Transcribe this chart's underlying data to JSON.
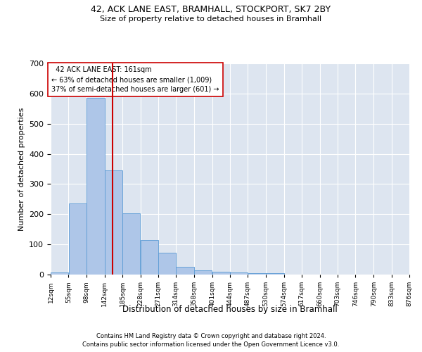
{
  "title1": "42, ACK LANE EAST, BRAMHALL, STOCKPORT, SK7 2BY",
  "title2": "Size of property relative to detached houses in Bramhall",
  "xlabel": "Distribution of detached houses by size in Bramhall",
  "ylabel": "Number of detached properties",
  "footnote1": "Contains HM Land Registry data © Crown copyright and database right 2024.",
  "footnote2": "Contains public sector information licensed under the Open Government Licence v3.0.",
  "annotation_line1": "  42 ACK LANE EAST: 161sqm  ",
  "annotation_line2": "← 63% of detached houses are smaller (1,009)",
  "annotation_line3": "37% of semi-detached houses are larger (601) →",
  "bar_color": "#aec6e8",
  "bar_edge_color": "#5b9bd5",
  "vline_color": "#cc0000",
  "vline_x": 161,
  "background_color": "#dde5f0",
  "ylim": [
    0,
    700
  ],
  "yticks": [
    0,
    100,
    200,
    300,
    400,
    500,
    600,
    700
  ],
  "bin_edges": [
    12,
    55,
    98,
    142,
    185,
    228,
    271,
    314,
    358,
    401,
    444,
    487,
    530,
    574,
    617,
    660,
    703,
    746,
    790,
    833,
    876
  ],
  "bar_heights": [
    7,
    235,
    585,
    345,
    202,
    115,
    72,
    25,
    13,
    9,
    8,
    5,
    4,
    0,
    0,
    0,
    0,
    0,
    0,
    0
  ]
}
